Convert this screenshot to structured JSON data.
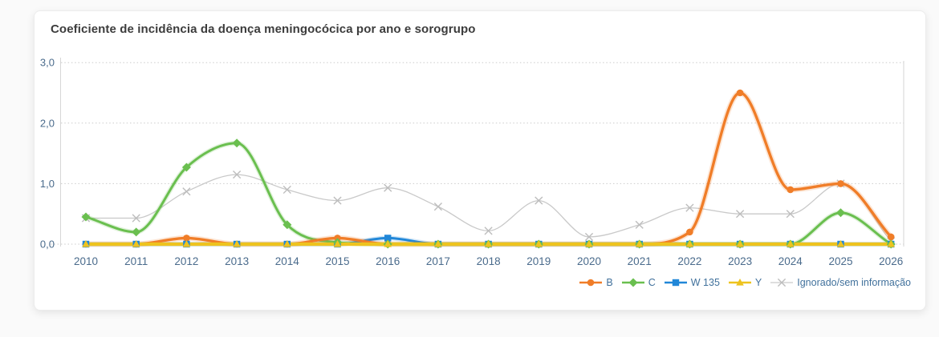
{
  "card": {
    "background": "#ffffff"
  },
  "chart_data": {
    "type": "line",
    "title": "Coeficiente de incidência da doença meningocócica por ano e sorogrupo",
    "xlabel": "",
    "ylabel": "",
    "ylim": [
      0,
      3
    ],
    "grid": "horizontal-dotted",
    "legend_position": "bottom-right",
    "categories": [
      "2010",
      "2011",
      "2012",
      "2013",
      "2014",
      "2015",
      "2016",
      "2017",
      "2018",
      "2019",
      "2020",
      "2021",
      "2022",
      "2023",
      "2024",
      "2025",
      "2026"
    ],
    "y_ticks": [
      {
        "value": 0,
        "label": "0,0"
      },
      {
        "value": 1,
        "label": "1,0"
      },
      {
        "value": 2,
        "label": "2,0"
      },
      {
        "value": 3,
        "label": "3,0"
      }
    ],
    "series": [
      {
        "name": "B",
        "marker": "circle",
        "color": "#f07d28",
        "values": [
          0,
          0,
          0.1,
          0,
          0,
          0.1,
          0,
          0,
          0,
          0,
          0,
          0,
          0.2,
          2.5,
          0.9,
          1.0,
          0.12
        ]
      },
      {
        "name": "C",
        "marker": "diamond",
        "color": "#6abf4f",
        "values": [
          0.45,
          0.2,
          1.27,
          1.67,
          0.32,
          0.03,
          0,
          0,
          0,
          0,
          0,
          0,
          0,
          0,
          0,
          0.52,
          0
        ]
      },
      {
        "name": "W 135",
        "marker": "square",
        "color": "#2187d8",
        "values": [
          0,
          0,
          0,
          0,
          0,
          0,
          0.1,
          0,
          0,
          0,
          0,
          0,
          0,
          0,
          0,
          0,
          0
        ]
      },
      {
        "name": "Y",
        "marker": "triangle",
        "color": "#eec31e",
        "values": [
          0,
          0,
          0,
          0,
          0,
          0,
          0,
          0,
          0,
          0,
          0,
          0,
          0,
          0,
          0,
          0,
          0
        ]
      },
      {
        "name": "Ignorado/sem informação",
        "marker": "x",
        "color": "#c9c9c9",
        "values": [
          0.43,
          0.43,
          0.87,
          1.15,
          0.9,
          0.72,
          0.93,
          0.62,
          0.22,
          0.72,
          0.12,
          0.32,
          0.6,
          0.5,
          0.5,
          1.0,
          0.05
        ]
      }
    ]
  },
  "colors": {
    "axis_text": "#4a6b8c",
    "legend_text": "#41719c",
    "grid": "#cbcbcb",
    "axis_line": "#d6d6d6",
    "title_text": "#3c3c3c"
  }
}
